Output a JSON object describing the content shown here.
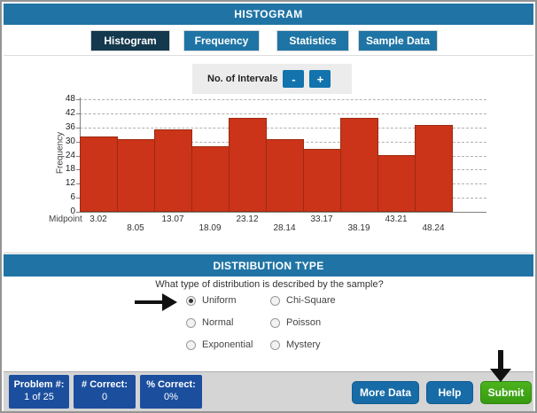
{
  "window": {
    "title": "HISTOGRAM"
  },
  "tabs": [
    {
      "label": "Histogram",
      "active": true
    },
    {
      "label": "Frequency",
      "active": false
    },
    {
      "label": "Statistics",
      "active": false
    },
    {
      "label": "Sample Data",
      "active": false
    }
  ],
  "intervals_control": {
    "label": "No. of Intervals",
    "decrease": "-",
    "increase": "+"
  },
  "chart_data": {
    "type": "bar",
    "title": "",
    "xlabel": "Midpoint",
    "ylabel": "Frequency",
    "categories": [
      "3.02",
      "8.05",
      "13.07",
      "18.09",
      "23.12",
      "28.14",
      "33.17",
      "38.19",
      "43.21",
      "48.24"
    ],
    "values": [
      32,
      31,
      35,
      28,
      40,
      31,
      27,
      40,
      24,
      37
    ],
    "ylim": [
      0,
      48
    ],
    "ytick_step": 6,
    "grid": true,
    "bar_color": "#cb3418"
  },
  "distribution_section": {
    "title": "DISTRIBUTION TYPE",
    "question": "What type of distribution is described by the sample?",
    "options": [
      {
        "label": "Uniform",
        "selected": true
      },
      {
        "label": "Normal",
        "selected": false
      },
      {
        "label": "Exponential",
        "selected": false
      },
      {
        "label": "Chi-Square",
        "selected": false
      },
      {
        "label": "Poisson",
        "selected": false
      },
      {
        "label": "Mystery",
        "selected": false
      }
    ]
  },
  "status_bar": {
    "stats": [
      {
        "label": "Problem #:",
        "value": "1 of 25"
      },
      {
        "label": "# Correct:",
        "value": "0"
      },
      {
        "label": "% Correct:",
        "value": "0%"
      }
    ],
    "buttons": {
      "more_data": "More Data",
      "help": "Help",
      "submit": "Submit"
    }
  },
  "colors": {
    "header_blue": "#2074a5",
    "active_tab_navy": "#14384e",
    "stat_box_blue": "#1b4f9e",
    "bar_red": "#cb3418",
    "button_blue": "#176ba6",
    "submit_green": "#3da01a"
  }
}
